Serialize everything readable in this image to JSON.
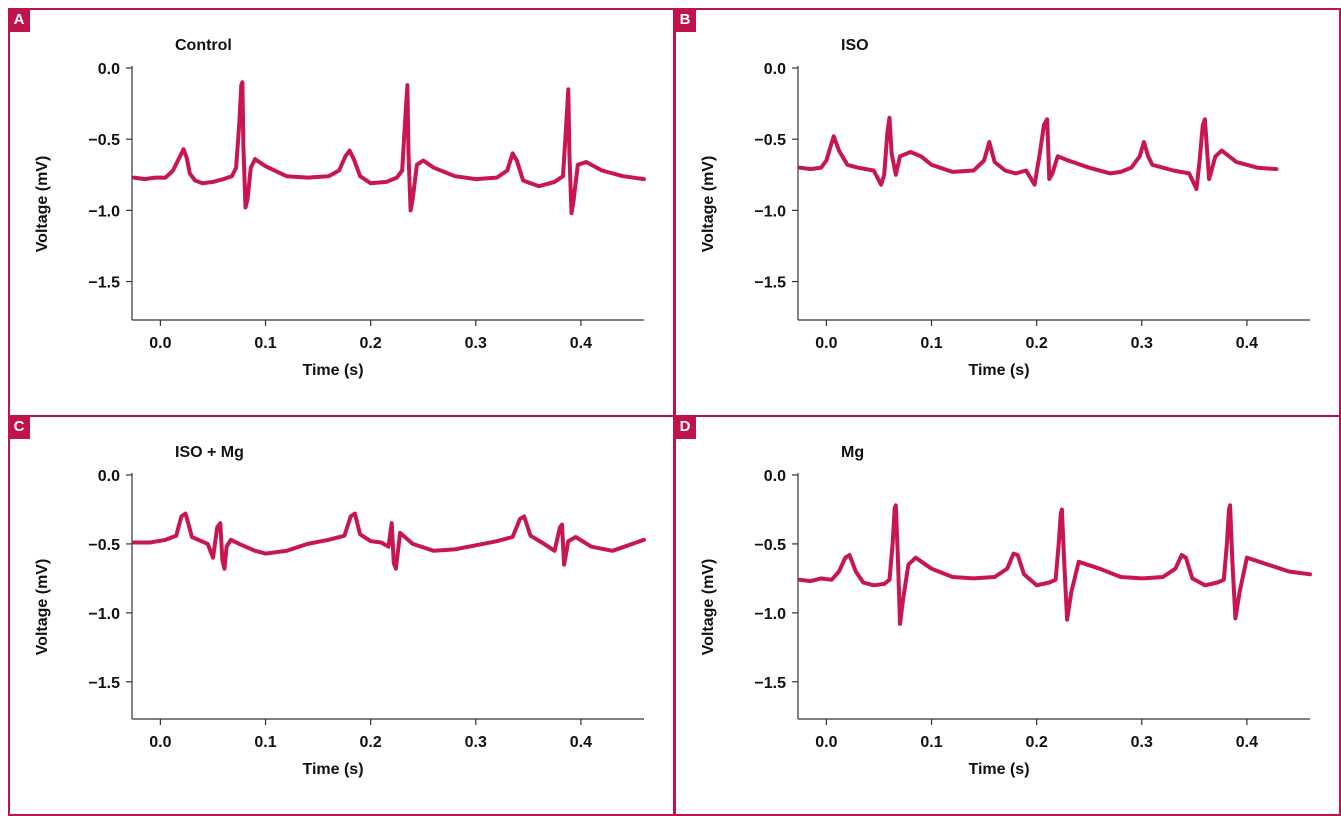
{
  "colors": {
    "accent": "#c0134a",
    "trace": "#c8164f",
    "axis": "#333333"
  },
  "chart_data": [
    {
      "type": "line",
      "panel_label": "A",
      "title": "Control",
      "xlabel": "Time (s)",
      "ylabel": "Voltage (mV)",
      "xlim": [
        -0.027,
        0.46
      ],
      "ylim": [
        -1.77,
        0.0
      ],
      "xticks": [
        "0.0",
        "0.1",
        "0.2",
        "0.3",
        "0.4"
      ],
      "yticks": [
        "0.0",
        "−0.5",
        "−1.0",
        "−1.5"
      ],
      "x": [
        -0.025,
        -0.015,
        -0.005,
        0.005,
        0.012,
        0.018,
        0.022,
        0.025,
        0.028,
        0.033,
        0.04,
        0.05,
        0.06,
        0.068,
        0.072,
        0.075,
        0.077,
        0.078,
        0.079,
        0.081,
        0.083,
        0.086,
        0.09,
        0.1,
        0.12,
        0.14,
        0.16,
        0.17,
        0.176,
        0.18,
        0.184,
        0.19,
        0.2,
        0.215,
        0.225,
        0.23,
        0.233,
        0.235,
        0.236,
        0.238,
        0.24,
        0.244,
        0.25,
        0.26,
        0.28,
        0.3,
        0.32,
        0.33,
        0.335,
        0.339,
        0.345,
        0.36,
        0.375,
        0.383,
        0.386,
        0.388,
        0.389,
        0.391,
        0.393,
        0.397,
        0.405,
        0.42,
        0.44,
        0.46
      ],
      "y": [
        -0.77,
        -0.78,
        -0.77,
        -0.77,
        -0.72,
        -0.63,
        -0.57,
        -0.63,
        -0.74,
        -0.79,
        -0.81,
        -0.8,
        -0.78,
        -0.76,
        -0.7,
        -0.4,
        -0.12,
        -0.1,
        -0.55,
        -0.98,
        -0.92,
        -0.7,
        -0.64,
        -0.69,
        -0.76,
        -0.77,
        -0.76,
        -0.72,
        -0.62,
        -0.58,
        -0.64,
        -0.76,
        -0.81,
        -0.8,
        -0.77,
        -0.72,
        -0.35,
        -0.12,
        -0.6,
        -1.0,
        -0.92,
        -0.68,
        -0.65,
        -0.7,
        -0.76,
        -0.78,
        -0.77,
        -0.72,
        -0.6,
        -0.65,
        -0.79,
        -0.83,
        -0.8,
        -0.76,
        -0.4,
        -0.15,
        -0.6,
        -1.02,
        -0.93,
        -0.68,
        -0.66,
        -0.72,
        -0.76,
        -0.78
      ]
    },
    {
      "type": "line",
      "panel_label": "B",
      "title": "ISO",
      "xlabel": "Time (s)",
      "ylabel": "Voltage (mV)",
      "xlim": [
        -0.027,
        0.46
      ],
      "ylim": [
        -1.77,
        0.0
      ],
      "xticks": [
        "0.0",
        "0.1",
        "0.2",
        "0.3",
        "0.4"
      ],
      "yticks": [
        "0.0",
        "−0.5",
        "−1.0",
        "−1.5"
      ],
      "x": [
        -0.025,
        -0.015,
        -0.005,
        0.0,
        0.004,
        0.007,
        0.012,
        0.02,
        0.03,
        0.045,
        0.052,
        0.055,
        0.058,
        0.06,
        0.062,
        0.066,
        0.07,
        0.08,
        0.09,
        0.1,
        0.12,
        0.14,
        0.15,
        0.155,
        0.16,
        0.17,
        0.18,
        0.19,
        0.198,
        0.203,
        0.207,
        0.21,
        0.212,
        0.215,
        0.22,
        0.23,
        0.25,
        0.27,
        0.28,
        0.29,
        0.298,
        0.302,
        0.306,
        0.31,
        0.33,
        0.345,
        0.352,
        0.355,
        0.358,
        0.36,
        0.364,
        0.37,
        0.376,
        0.39,
        0.41,
        0.428
      ],
      "y": [
        -0.7,
        -0.71,
        -0.7,
        -0.65,
        -0.55,
        -0.48,
        -0.58,
        -0.68,
        -0.7,
        -0.72,
        -0.82,
        -0.75,
        -0.45,
        -0.35,
        -0.6,
        -0.75,
        -0.62,
        -0.59,
        -0.62,
        -0.68,
        -0.73,
        -0.72,
        -0.65,
        -0.52,
        -0.66,
        -0.72,
        -0.74,
        -0.72,
        -0.82,
        -0.6,
        -0.4,
        -0.36,
        -0.78,
        -0.74,
        -0.62,
        -0.65,
        -0.7,
        -0.74,
        -0.73,
        -0.7,
        -0.62,
        -0.52,
        -0.62,
        -0.68,
        -0.72,
        -0.74,
        -0.85,
        -0.65,
        -0.4,
        -0.36,
        -0.78,
        -0.62,
        -0.58,
        -0.66,
        -0.7,
        -0.71
      ]
    },
    {
      "type": "line",
      "panel_label": "C",
      "title": "ISO + Mg",
      "xlabel": "Time (s)",
      "ylabel": "Voltage (mV)",
      "xlim": [
        -0.027,
        0.46
      ],
      "ylim": [
        -1.77,
        0.0
      ],
      "xticks": [
        "0.0",
        "0.1",
        "0.2",
        "0.3",
        "0.4"
      ],
      "yticks": [
        "0.0",
        "−0.5",
        "−1.0",
        "−1.5"
      ],
      "x": [
        -0.025,
        -0.01,
        0.005,
        0.015,
        0.02,
        0.024,
        0.03,
        0.045,
        0.05,
        0.054,
        0.057,
        0.059,
        0.061,
        0.063,
        0.067,
        0.075,
        0.09,
        0.1,
        0.12,
        0.14,
        0.16,
        0.175,
        0.181,
        0.185,
        0.19,
        0.2,
        0.21,
        0.217,
        0.22,
        0.222,
        0.224,
        0.228,
        0.24,
        0.26,
        0.28,
        0.3,
        0.32,
        0.335,
        0.342,
        0.346,
        0.352,
        0.365,
        0.375,
        0.38,
        0.382,
        0.384,
        0.388,
        0.395,
        0.41,
        0.43,
        0.46
      ],
      "y": [
        -0.49,
        -0.49,
        -0.47,
        -0.44,
        -0.3,
        -0.28,
        -0.45,
        -0.5,
        -0.6,
        -0.38,
        -0.35,
        -0.62,
        -0.68,
        -0.52,
        -0.47,
        -0.5,
        -0.55,
        -0.57,
        -0.55,
        -0.5,
        -0.47,
        -0.44,
        -0.3,
        -0.28,
        -0.43,
        -0.48,
        -0.49,
        -0.52,
        -0.35,
        -0.64,
        -0.68,
        -0.42,
        -0.5,
        -0.55,
        -0.54,
        -0.51,
        -0.48,
        -0.45,
        -0.32,
        -0.3,
        -0.44,
        -0.5,
        -0.55,
        -0.38,
        -0.36,
        -0.65,
        -0.48,
        -0.45,
        -0.52,
        -0.55,
        -0.47
      ]
    },
    {
      "type": "line",
      "panel_label": "D",
      "title": "Mg",
      "xlabel": "Time (s)",
      "ylabel": "Voltage (mV)",
      "xlim": [
        -0.027,
        0.46
      ],
      "ylim": [
        -1.77,
        0.0
      ],
      "xticks": [
        "0.0",
        "0.1",
        "0.2",
        "0.3",
        "0.4"
      ],
      "yticks": [
        "0.0",
        "−0.5",
        "−1.0",
        "−1.5"
      ],
      "x": [
        -0.025,
        -0.015,
        -0.005,
        0.005,
        0.012,
        0.018,
        0.022,
        0.028,
        0.035,
        0.045,
        0.055,
        0.06,
        0.063,
        0.065,
        0.066,
        0.068,
        0.07,
        0.073,
        0.078,
        0.085,
        0.1,
        0.12,
        0.14,
        0.16,
        0.172,
        0.178,
        0.182,
        0.188,
        0.2,
        0.212,
        0.218,
        0.221,
        0.223,
        0.224,
        0.226,
        0.229,
        0.233,
        0.24,
        0.26,
        0.28,
        0.3,
        0.32,
        0.332,
        0.338,
        0.342,
        0.348,
        0.36,
        0.372,
        0.378,
        0.381,
        0.383,
        0.384,
        0.386,
        0.389,
        0.393,
        0.4,
        0.42,
        0.44,
        0.46
      ],
      "y": [
        -0.76,
        -0.77,
        -0.75,
        -0.76,
        -0.7,
        -0.6,
        -0.58,
        -0.7,
        -0.78,
        -0.8,
        -0.79,
        -0.76,
        -0.5,
        -0.24,
        -0.22,
        -0.6,
        -1.08,
        -0.9,
        -0.65,
        -0.6,
        -0.68,
        -0.74,
        -0.75,
        -0.74,
        -0.68,
        -0.57,
        -0.58,
        -0.72,
        -0.8,
        -0.78,
        -0.76,
        -0.5,
        -0.28,
        -0.25,
        -0.6,
        -1.05,
        -0.85,
        -0.63,
        -0.68,
        -0.74,
        -0.75,
        -0.74,
        -0.68,
        -0.58,
        -0.6,
        -0.75,
        -0.8,
        -0.78,
        -0.76,
        -0.5,
        -0.25,
        -0.22,
        -0.6,
        -1.04,
        -0.85,
        -0.6,
        -0.65,
        -0.7,
        -0.72
      ]
    }
  ]
}
